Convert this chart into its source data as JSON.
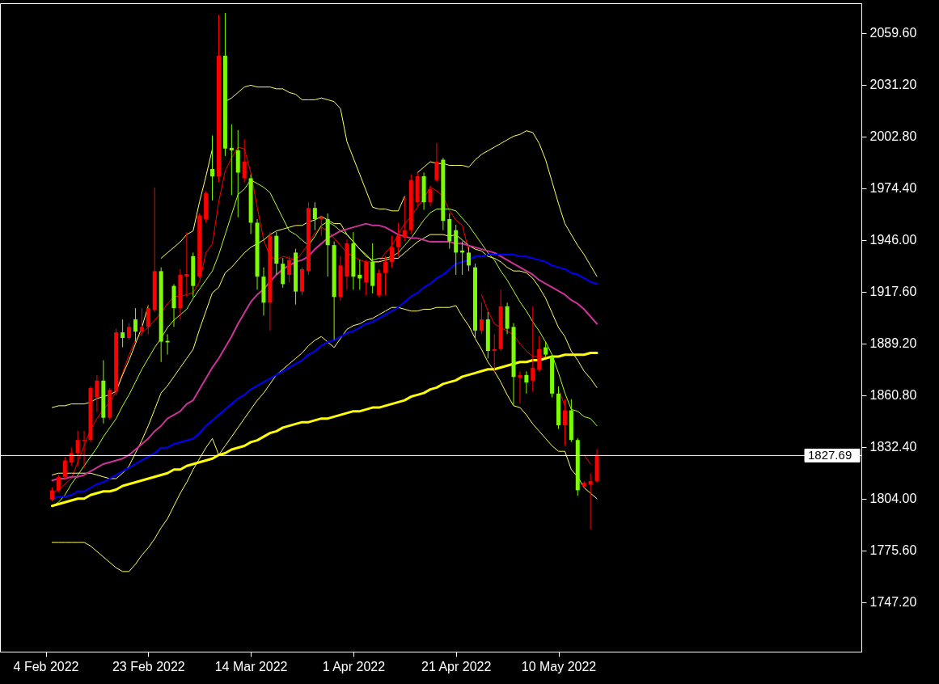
{
  "chart_data": {
    "type": "candlestick",
    "categories": [
      "4 Feb 2022",
      null,
      null,
      null,
      null,
      null,
      null,
      null,
      null,
      null,
      null,
      null,
      null,
      null,
      null,
      null,
      "23 Feb 2022",
      null,
      null,
      null,
      null,
      null,
      null,
      null,
      null,
      null,
      null,
      null,
      null,
      null,
      null,
      null,
      "14 Mar 2022",
      null,
      null,
      null,
      null,
      null,
      null,
      null,
      null,
      null,
      null,
      null,
      null,
      null,
      null,
      null,
      "1 Apr 2022",
      null,
      null,
      null,
      null,
      null,
      null,
      null,
      null,
      null,
      null,
      null,
      null,
      null,
      null,
      null,
      "21 Apr 2022",
      null,
      null,
      null,
      null,
      null,
      null,
      null,
      null,
      null,
      null,
      null,
      null,
      null,
      null,
      null,
      "10 May 2022",
      null,
      null,
      null,
      null,
      null,
      null
    ],
    "ohlc": [
      null,
      [
        1803.5,
        1810.3,
        1802.5,
        1808.6
      ],
      [
        1808.6,
        1817.2,
        1807.6,
        1815.8
      ],
      [
        1815.8,
        1827.0,
        1814.7,
        1824.9
      ],
      [
        1823.9,
        1832.1,
        1821.9,
        1829.0
      ],
      [
        1829.0,
        1841.3,
        1821.9,
        1836.2
      ],
      [
        1835.6,
        1841.3,
        1820.9,
        1836.2
      ],
      [
        1836.2,
        1865.7,
        1835.1,
        1864.7
      ],
      [
        1859.6,
        1871.8,
        1851.5,
        1868.8
      ],
      [
        1868.8,
        1880.0,
        1845.3,
        1848.4
      ],
      [
        1848.4,
        1864.7,
        1847.4,
        1863.7
      ],
      [
        1862.7,
        1897.3,
        1860.6,
        1895.3
      ],
      [
        1895.3,
        1902.4,
        1887.1,
        1892.2
      ],
      [
        1892.2,
        1900.4,
        1891.2,
        1898.3
      ],
      [
        1902.4,
        1908.6,
        1890.2,
        1895.7
      ],
      [
        1895.7,
        1908.6,
        1893.3,
        1898.3
      ],
      [
        1898.3,
        1910.6,
        1894.3,
        1908.6
      ],
      [
        1907.5,
        1974.8,
        1906.5,
        1928.9
      ],
      [
        1928.9,
        1931.0,
        1879.0,
        1890.2
      ],
      [
        1890.6,
        1894.3,
        1883.1,
        1889.8
      ],
      [
        1920.8,
        1921.8,
        1898.3,
        1908.6
      ],
      [
        1908.6,
        1930.0,
        1902.4,
        1926.9
      ],
      [
        1925.9,
        1950.4,
        1914.7,
        1927.3
      ],
      [
        1937.1,
        1939.1,
        1914.7,
        1920.8
      ],
      [
        1925.9,
        1960.6,
        1924.9,
        1959.5
      ],
      [
        1957.5,
        1972.8,
        1955.5,
        1971.8
      ],
      [
        1985.0,
        2003.4,
        1967.7,
        1980.9
      ],
      [
        1980.9,
        2069.6,
        1977.9,
        2047.2
      ],
      [
        2047.2,
        2070.7,
        1992.2,
        1996.2
      ],
      [
        1996.6,
        2009.5,
        1970.7,
        1995.2
      ],
      [
        1995.2,
        2006.4,
        1958.5,
        1983.0
      ],
      [
        1979.9,
        2001.3,
        1977.9,
        1989.1
      ],
      [
        1979.9,
        1982.0,
        1949.3,
        1955.5
      ],
      [
        1955.5,
        1957.5,
        1918.7,
        1925.9
      ],
      [
        1925.9,
        1931.0,
        1904.5,
        1911.6
      ],
      [
        1911.6,
        1950.4,
        1896.3,
        1948.3
      ],
      [
        1948.3,
        1950.4,
        1926.9,
        1933.0
      ],
      [
        1933.0,
        1936.1,
        1919.8,
        1921.8
      ],
      [
        1926.9,
        1937.1,
        1922.8,
        1935.1
      ],
      [
        1939.1,
        1941.2,
        1910.6,
        1917.7
      ],
      [
        1917.7,
        1931.0,
        1915.7,
        1930.0
      ],
      [
        1928.9,
        1966.7,
        1926.9,
        1963.6
      ],
      [
        1963.6,
        1966.7,
        1951.4,
        1957.5
      ],
      [
        1957.5,
        1959.5,
        1948.3,
        1958.5
      ],
      [
        1957.5,
        1960.6,
        1925.9,
        1943.2
      ],
      [
        1943.2,
        1945.3,
        1891.2,
        1914.7
      ],
      [
        1914.7,
        1937.1,
        1912.6,
        1932.0
      ],
      [
        1925.9,
        1946.3,
        1918.7,
        1944.2
      ],
      [
        1944.2,
        1950.4,
        1918.7,
        1925.9
      ],
      [
        1926.9,
        1935.1,
        1918.7,
        1924.9
      ],
      [
        1922.8,
        1935.1,
        1915.7,
        1934.0
      ],
      [
        1934.0,
        1944.2,
        1916.7,
        1920.8
      ],
      [
        1915.7,
        1930.0,
        1914.7,
        1927.9
      ],
      [
        1927.9,
        1937.1,
        1915.7,
        1934.0
      ],
      [
        1934.0,
        1948.3,
        1931.0,
        1942.2
      ],
      [
        1942.2,
        1955.5,
        1937.1,
        1948.3
      ],
      [
        1947.3,
        1969.7,
        1945.3,
        1951.4
      ],
      [
        1951.4,
        1982.0,
        1949.3,
        1978.9
      ],
      [
        1966.7,
        1983.0,
        1964.6,
        1981.0
      ],
      [
        1981.0,
        1983.0,
        1962.6,
        1966.7
      ],
      [
        1966.7,
        1975.8,
        1964.6,
        1973.8
      ],
      [
        1978.9,
        1999.3,
        1977.9,
        1989.1
      ],
      [
        1990.1,
        1991.1,
        1951.4,
        1956.5
      ],
      [
        1957.5,
        1960.6,
        1941.2,
        1945.3
      ],
      [
        1951.4,
        1954.4,
        1926.9,
        1939.1
      ],
      [
        1940.2,
        1945.3,
        1926.9,
        1939.1
      ],
      [
        1939.1,
        1942.2,
        1928.9,
        1932.0
      ],
      [
        1931.0,
        1933.0,
        1892.2,
        1896.3
      ],
      [
        1896.3,
        1911.6,
        1894.3,
        1902.4
      ],
      [
        1902.4,
        1906.5,
        1881.0,
        1885.1
      ],
      [
        1885.1,
        1894.3,
        1872.9,
        1886.1
      ],
      [
        1886.1,
        1918.7,
        1885.1,
        1909.6
      ],
      [
        1909.6,
        1911.6,
        1894.3,
        1897.3
      ],
      [
        1898.3,
        1900.4,
        1855.5,
        1870.8
      ],
      [
        1870.4,
        1873.9,
        1856.5,
        1871.9
      ],
      [
        1871.9,
        1873.9,
        1861.7,
        1867.8
      ],
      [
        1868.8,
        1909.6,
        1862.7,
        1875.9
      ],
      [
        1874.9,
        1893.3,
        1873.9,
        1886.1
      ],
      [
        1887.1,
        1890.2,
        1882.0,
        1883.1
      ],
      [
        1882.0,
        1883.1,
        1859.6,
        1861.7
      ],
      [
        1861.7,
        1865.7,
        1842.3,
        1844.3
      ],
      [
        1844.3,
        1858.6,
        1833.1,
        1852.5
      ],
      [
        1852.5,
        1858.6,
        1835.1,
        1836.2
      ],
      [
        1836.2,
        1837.2,
        1805.6,
        1808.6
      ],
      [
        1810.7,
        1813.7,
        1809.6,
        1812.7
      ],
      [
        1811.7,
        1817.8,
        1787.2,
        1813.7
      ],
      [
        1813.7,
        1831.1,
        1812.7,
        1828.0
      ]
    ],
    "colors": [
      null,
      "#ff0000",
      "#ff0000",
      "#ff0000",
      "#ff0000",
      "#ff0000",
      "#ff0000",
      "#ff0000",
      "#ff0000",
      "#7cfc00",
      "#ff0000",
      "#ff0000",
      "#7cfc00",
      "#ff0000",
      "#7cfc00",
      "#ff0000",
      "#ff0000",
      "#ff0000",
      "#7cfc00",
      "#7cfc00",
      "#7cfc00",
      "#ff0000",
      "#ff0000",
      "#7cfc00",
      "#ff0000",
      "#ff0000",
      "#7cfc00",
      "#ff0000",
      "#7cfc00",
      "#7cfc00",
      "#7cfc00",
      "#ff0000",
      "#7cfc00",
      "#7cfc00",
      "#7cfc00",
      "#ff0000",
      "#7cfc00",
      "#7cfc00",
      "#ff0000",
      "#7cfc00",
      "#ff0000",
      "#ff0000",
      "#7cfc00",
      "#ff0000",
      "#7cfc00",
      "#7cfc00",
      "#ff0000",
      "#ff0000",
      "#7cfc00",
      "#7cfc00",
      "#ff0000",
      "#7cfc00",
      "#ff0000",
      "#ff0000",
      "#ff0000",
      "#ff0000",
      "#ff0000",
      "#ff0000",
      "#ff0000",
      "#7cfc00",
      "#ff0000",
      "#ff0000",
      "#7cfc00",
      "#7cfc00",
      "#7cfc00",
      "#7cfc00",
      "#7cfc00",
      "#7cfc00",
      "#ff0000",
      "#7cfc00",
      "#ff0000",
      "#ff0000",
      "#7cfc00",
      "#7cfc00",
      "#ff0000",
      "#7cfc00",
      "#ff0000",
      "#ff0000",
      "#7cfc00",
      "#7cfc00",
      "#7cfc00",
      "#ff0000",
      "#7cfc00",
      "#7cfc00",
      "#ff0000",
      "#ff0000",
      "#ff0000"
    ],
    "series": [
      {
        "type": "line",
        "color": "#ff0000",
        "values": [
          null,
          1807,
          1809,
          1812,
          1815,
          1824,
          1833,
          1842,
          1848,
          1853,
          1857,
          1863,
          1873,
          1883,
          1891,
          1895,
          1898,
          1902,
          1906,
          1911,
          1915,
          1915,
          1916,
          1917,
          1923,
          1939,
          1944,
          1967,
          1984,
          1991,
          1997,
          1996,
          1983,
          1964,
          1946,
          1937,
          1935,
          1937,
          1936,
          1935,
          1939,
          1944,
          1950,
          1953,
          1951,
          1947,
          1943,
          1939,
          1937,
          1935,
          1934,
          1934,
          1934,
          1939,
          1943,
          1949,
          1955,
          1959,
          1964,
          1969,
          1975,
          1973,
          1970,
          1962,
          1957,
          1954,
          1940,
          null,
          1916,
          1907,
          1900,
          1898,
          1896,
          1894,
          1889,
          1885,
          1882,
          1882,
          1882,
          null,
          1864,
          1855,
          null,
          null,
          1828,
          1823,
          null
        ]
      },
      {
        "type": "line",
        "color": "#adff2f",
        "values": [
          null,
          1800,
          1802,
          1806,
          1812,
          1817,
          1822,
          1827,
          1832,
          1838,
          1843,
          1848,
          1855,
          1861,
          1868,
          1875,
          1881,
          1887,
          1892,
          1898,
          1902,
          1905,
          1908,
          1914,
          1919,
          1924,
          1929,
          1938,
          1949,
          1960,
          1971,
          1974,
          1979,
          1977,
          1975,
          1972,
          1965,
          1958,
          1951,
          1949,
          1946,
          1943,
          1948,
          1954,
          1956,
          1954,
          1951,
          1949,
          1945,
          1941,
          1937,
          1935,
          1936,
          1936,
          1937,
          1939,
          1943,
          1947,
          1952,
          1957,
          1961,
          1963,
          1963,
          1963,
          1962,
          1958,
          1954,
          1949,
          1944,
          1939,
          1935,
          1929,
          1924,
          1918,
          1912,
          1907,
          1901,
          1896,
          1890,
          1883,
          1873,
          1862,
          1853,
          1852,
          1849,
          1848,
          1844
        ]
      },
      {
        "type": "line",
        "color": "#ffff66",
        "values": [
          null,
          1854,
          1855,
          1855,
          1856,
          1856,
          1856,
          1857,
          1859,
          1860,
          1861,
          1863,
          1872,
          1880,
          1889,
          1898,
          1910,
          null,
          1936,
          1939,
          1942,
          1945,
          1949,
          1951,
          1967,
          1981,
          1996,
          null,
          2022,
          2024,
          2027,
          2030,
          2031,
          2030,
          2030,
          2030,
          2029,
          2029,
          2027,
          2026,
          2023,
          2023,
          2023,
          2024,
          2023,
          2022,
          2018,
          2000,
          1991,
          1982,
          1973,
          1964,
          1963,
          1963,
          1962,
          1962,
          1970,
          null,
          1983,
          1986,
          1989,
          1988,
          1988,
          1987,
          1987,
          1987,
          1986,
          1990,
          1993,
          1995,
          1997,
          1999,
          2001,
          2003,
          2004,
          2006,
          2005,
          1999,
          1990,
          1978,
          1966,
          1955,
          1949,
          1943,
          1938,
          1932,
          1926
        ]
      },
      {
        "type": "line",
        "color": "#ffff66",
        "values": [
          null,
          1817,
          1818,
          1818,
          1818,
          1818,
          1818,
          1818,
          1817,
          1816,
          1815,
          1815,
          1818,
          1822,
          1829,
          1836,
          1844,
          1853,
          1862,
          1866,
          1871,
          1876,
          1881,
          1886,
          1897,
          1907,
          1917,
          1920,
          1928,
          1931,
          1935,
          1939,
          1942,
          1944,
          1946,
          1949,
          1951,
          1952,
          1953,
          1954,
          1954,
          1956,
          1957,
          1959,
          1957,
          1955,
          1955,
          1949,
          1945,
          1941,
          1938,
          1934,
          1934,
          1935,
          1936,
          1936,
          1939,
          1942,
          1945,
          1947,
          1949,
          1949,
          1949,
          1948,
          1949,
          1946,
          1943,
          1941,
          1940,
          1937,
          1936,
          1934,
          1931,
          1929,
          1929,
          1928,
          1925,
          1920,
          1914,
          1906,
          1898,
          1893,
          1885,
          1880,
          1874,
          1870,
          1865
        ]
      },
      {
        "type": "line",
        "color": "#ffff66",
        "values": [
          null,
          1780,
          1780,
          1780,
          1780,
          1780,
          1780,
          1778,
          1775,
          1772,
          1769,
          1766,
          1764,
          1764,
          1768,
          1773,
          1777,
          1782,
          1788,
          1793,
          1800,
          1807,
          1813,
          1820,
          1826,
          1832,
          1837,
          1828,
          1833,
          1838,
          1843,
          1848,
          1853,
          1858,
          1862,
          1867,
          1872,
          1875,
          1878,
          1881,
          1884,
          1888,
          1891,
          1893,
          1890,
          1887,
          1892,
          1897,
          1899,
          1900,
          1902,
          1903,
          1905,
          1907,
          1909,
          1909,
          1908,
          1907,
          1907,
          1908,
          1908,
          1909,
          1909,
          1909,
          1910,
          1904,
          1899,
          1892,
          1886,
          1879,
          1874,
          1868,
          1861,
          1855,
          1854,
          1850,
          1845,
          1841,
          1837,
          1833,
          1830,
          1830,
          1820,
          1816,
          1810,
          1807,
          1804
        ]
      },
      {
        "type": "line",
        "color": "#cc3399",
        "values": [
          null,
          1814,
          1815,
          1815,
          1816,
          1816,
          1817,
          1819,
          1821,
          1823,
          1824,
          1825,
          1826,
          1828,
          1831,
          1834,
          1837,
          1841,
          1844,
          1848,
          1850,
          1852,
          1856,
          1858,
          1864,
          1870,
          1876,
          1881,
          1887,
          1893,
          1900,
          1906,
          1912,
          1916,
          1919,
          1923,
          1927,
          1930,
          1932,
          1934,
          1935,
          1937,
          1941,
          1944,
          1947,
          1949,
          1951,
          1952,
          1953,
          1954,
          1955,
          1954,
          1954,
          1953,
          1951,
          1949,
          1948,
          1947,
          1947,
          1946,
          1945,
          1945,
          1945,
          1945,
          1944,
          1944,
          1943,
          1942,
          1941,
          1940,
          1939,
          1937,
          1935,
          1933,
          1931,
          1929,
          1927,
          1924,
          1922,
          1920,
          1918,
          1916,
          1913,
          1911,
          1908,
          1904,
          1900
        ]
      },
      {
        "type": "line",
        "color": "#0000ff",
        "values": [
          null,
          1804,
          1805,
          1805,
          1806,
          1808,
          1808,
          1810,
          1812,
          1813,
          1815,
          1817,
          1819,
          1821,
          1823,
          1825,
          1827,
          1829,
          1832,
          1832,
          1834,
          1835,
          1836,
          1837,
          1840,
          1844,
          1847,
          1850,
          1853,
          1856,
          1859,
          1861,
          1864,
          1866,
          1868,
          1870,
          1872,
          1874,
          1876,
          1878,
          1880,
          1883,
          1885,
          1888,
          1890,
          1891,
          1893,
          1895,
          1896,
          1898,
          1900,
          1901,
          1903,
          1905,
          1907,
          1909,
          1912,
          1915,
          1917,
          1920,
          1922,
          1925,
          1927,
          1930,
          1933,
          1934,
          1935,
          1937,
          1937,
          1938,
          1938,
          1938,
          1938,
          1938,
          1937,
          1937,
          1936,
          1935,
          1934,
          1932,
          1931,
          1930,
          1928,
          1927,
          1925,
          1923,
          1922
        ]
      },
      {
        "type": "line",
        "color": "#ffff00",
        "values": [
          null,
          1800,
          1801,
          1802,
          1803,
          1804,
          1804,
          1806,
          1807,
          1808,
          1808,
          1809,
          1811,
          1812,
          1813,
          1814,
          1815,
          1816,
          1817,
          1818,
          1820,
          1820,
          1822,
          1823,
          1824,
          1825,
          1826,
          1828,
          1829,
          1831,
          1832,
          1833,
          1835,
          1836,
          1838,
          1840,
          1841,
          1843,
          1844,
          1845,
          1846,
          1846,
          1847,
          1848,
          1848,
          1849,
          1850,
          1851,
          1852,
          1852,
          1853,
          1854,
          1854,
          1855,
          1856,
          1857,
          1858,
          1860,
          1861,
          1862,
          1864,
          1865,
          1867,
          1868,
          1869,
          1871,
          1872,
          1873,
          1874,
          1875,
          1875,
          1876,
          1877,
          1878,
          1879,
          1879,
          1880,
          1880,
          1881,
          1882,
          1882,
          1883,
          1883,
          1883,
          1883,
          1884,
          1884
        ]
      }
    ],
    "ylim": [
      1720,
      2076
    ],
    "yticks": [
      {
        "value": 1747.2,
        "label": "1747.20"
      },
      {
        "value": 1775.6,
        "label": "1775.60"
      },
      {
        "value": 1804,
        "label": "1804.00"
      },
      {
        "value": 1832.4,
        "label": "1832.40"
      },
      {
        "value": 1860.8,
        "label": "1860.80"
      },
      {
        "value": 1889.2,
        "label": "1889.20"
      },
      {
        "value": 1917.6,
        "label": "1917.60"
      },
      {
        "value": 1946,
        "label": "1946.00"
      },
      {
        "value": 1974.4,
        "label": "1974.40"
      },
      {
        "value": 2002.8,
        "label": "2002.80"
      },
      {
        "value": 2031.2,
        "label": "2031.20"
      },
      {
        "value": 2059.6,
        "label": "2059.60"
      }
    ],
    "ref_lines": [
      {
        "axis": "y",
        "value": 1827.69,
        "label": "1827.69",
        "color": "#ffffff"
      }
    ]
  }
}
